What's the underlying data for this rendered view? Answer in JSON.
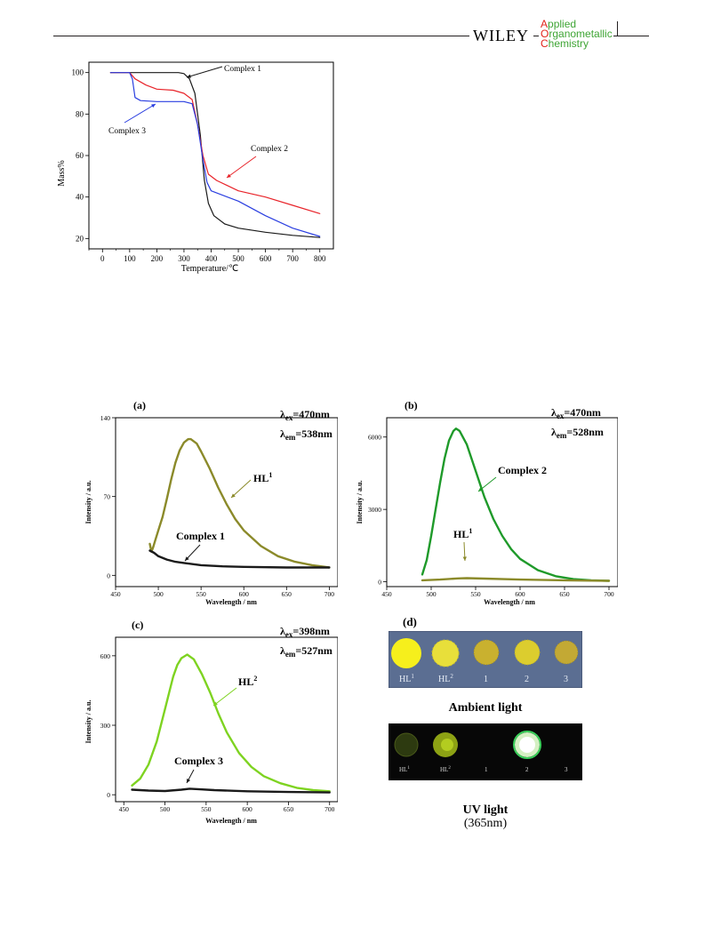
{
  "header": {
    "publisher": "WILEY",
    "journal_lines": [
      {
        "first": "A",
        "rest": "pplied"
      },
      {
        "first": "O",
        "rest": "rganometallic"
      },
      {
        "first": "C",
        "rest": "hemistry"
      }
    ]
  },
  "colors": {
    "black": "#1a1a1a",
    "red": "#e8242a",
    "blue": "#2a3ee0",
    "olive": "#8b8a2a",
    "darkgreen": "#1f9a2a",
    "lightgreen": "#7ed321"
  },
  "chart_data": [
    {
      "id": "tga",
      "type": "line",
      "title": "",
      "xlabel": "Temperature/℃",
      "ylabel": "Mass%",
      "xlim": [
        -50,
        850
      ],
      "ylim": [
        15,
        105
      ],
      "xticks": [
        0,
        100,
        200,
        300,
        400,
        500,
        600,
        700,
        800
      ],
      "yticks": [
        20,
        40,
        60,
        80,
        100
      ],
      "series": [
        {
          "name": "Complex 1",
          "color": "black",
          "x": [
            30,
            100,
            200,
            280,
            300,
            320,
            340,
            360,
            375,
            390,
            410,
            450,
            500,
            600,
            700,
            800
          ],
          "y": [
            100,
            100,
            100,
            100,
            99.5,
            97,
            90,
            70,
            48,
            37,
            31,
            27,
            25,
            23,
            21.5,
            20.5
          ]
        },
        {
          "name": "Complex 2",
          "color": "red",
          "x": [
            30,
            100,
            120,
            160,
            200,
            260,
            300,
            330,
            350,
            370,
            390,
            420,
            500,
            600,
            700,
            800
          ],
          "y": [
            100,
            100,
            97,
            94,
            92,
            91.5,
            90,
            87,
            75,
            60,
            51,
            48,
            43,
            40,
            36,
            32
          ]
        },
        {
          "name": "Complex 3",
          "color": "blue",
          "x": [
            30,
            100,
            110,
            120,
            140,
            200,
            260,
            300,
            330,
            350,
            370,
            385,
            400,
            500,
            600,
            700,
            800
          ],
          "y": [
            100,
            100,
            97,
            88,
            86.5,
            86,
            86,
            86,
            85,
            75,
            58,
            47,
            43,
            38,
            31,
            25,
            21
          ]
        }
      ],
      "annotations": [
        "Complex 1",
        "Complex 2",
        "Complex 3"
      ]
    },
    {
      "id": "a",
      "type": "line",
      "panel_label": "(a)",
      "xlabel": "Wavelength / nm",
      "ylabel": "Intensity / a.u.",
      "xlim": [
        450,
        710
      ],
      "ylim": [
        -10,
        140
      ],
      "xticks": [
        450,
        500,
        550,
        600,
        650,
        700
      ],
      "yticks": [
        0,
        70,
        140
      ],
      "excitation": {
        "ex_sym": "λ",
        "ex_sub": "ex",
        "ex_val": "=470nm",
        "em_sym": "λ",
        "em_sub": "em",
        "em_val": "=538nm"
      },
      "series": [
        {
          "name": "HL1",
          "label": "HL",
          "label_sup": "1",
          "color": "olive",
          "x": [
            490,
            492,
            494,
            496,
            500,
            505,
            510,
            515,
            520,
            525,
            530,
            535,
            538,
            545,
            550,
            560,
            570,
            580,
            590,
            600,
            620,
            640,
            660,
            680,
            700
          ],
          "y": [
            28,
            21,
            25,
            30,
            40,
            52,
            68,
            85,
            100,
            111,
            118,
            121,
            121,
            117,
            110,
            95,
            78,
            63,
            50,
            40,
            26,
            17,
            12,
            9,
            7
          ]
        },
        {
          "name": "Complex 1",
          "label": "Complex 1",
          "label_sup": "",
          "color": "black",
          "x": [
            490,
            495,
            500,
            510,
            520,
            530,
            550,
            575,
            600,
            650,
            700
          ],
          "y": [
            22,
            20,
            17,
            14,
            12,
            11,
            9,
            8,
            7.5,
            7,
            7
          ]
        }
      ]
    },
    {
      "id": "b",
      "type": "line",
      "panel_label": "(b)",
      "xlabel": "Wavelength / nm",
      "ylabel": "Intensity / a.u.",
      "xlim": [
        450,
        710
      ],
      "ylim": [
        -200,
        6800
      ],
      "xticks": [
        450,
        500,
        550,
        600,
        650,
        700
      ],
      "yticks": [
        0,
        3000,
        6000
      ],
      "excitation": {
        "ex_sym": "λ",
        "ex_sub": "ex",
        "ex_val": "=470nm",
        "em_sym": "λ",
        "em_sub": "em",
        "em_val": "=528nm"
      },
      "series": [
        {
          "name": "Complex 2",
          "label": "Complex 2",
          "label_sup": "",
          "color": "darkgreen",
          "x": [
            490,
            495,
            500,
            505,
            510,
            515,
            520,
            525,
            528,
            532,
            540,
            550,
            560,
            570,
            580,
            590,
            600,
            620,
            640,
            660,
            680,
            700
          ],
          "y": [
            300,
            900,
            1900,
            3000,
            4100,
            5100,
            5850,
            6250,
            6350,
            6250,
            5700,
            4600,
            3500,
            2600,
            1900,
            1350,
            950,
            480,
            230,
            110,
            60,
            40
          ]
        },
        {
          "name": "HL1",
          "label": "HL",
          "label_sup": "1",
          "color": "olive",
          "x": [
            490,
            510,
            530,
            540,
            560,
            600,
            650,
            700
          ],
          "y": [
            60,
            90,
            140,
            150,
            130,
            90,
            60,
            40
          ]
        }
      ]
    },
    {
      "id": "c",
      "type": "line",
      "panel_label": "(c)",
      "xlabel": "Wavelength / nm",
      "ylabel": "Intensity / a.u.",
      "xlim": [
        440,
        710
      ],
      "ylim": [
        -30,
        680
      ],
      "xticks": [
        450,
        500,
        550,
        600,
        650,
        700
      ],
      "yticks": [
        0,
        300,
        600
      ],
      "excitation": {
        "ex_sym": "λ",
        "ex_sub": "ex",
        "ex_val": "=398nm",
        "em_sym": "λ",
        "em_sub": "em",
        "em_val": "=527nm"
      },
      "series": [
        {
          "name": "HL2",
          "label": "HL",
          "label_sup": "2",
          "color": "lightgreen",
          "x": [
            460,
            470,
            480,
            490,
            500,
            505,
            510,
            515,
            520,
            527,
            535,
            545,
            555,
            565,
            575,
            590,
            605,
            620,
            640,
            660,
            680,
            700
          ],
          "y": [
            40,
            70,
            130,
            230,
            370,
            440,
            510,
            560,
            590,
            605,
            585,
            520,
            440,
            350,
            270,
            180,
            120,
            80,
            50,
            30,
            20,
            15
          ]
        },
        {
          "name": "Complex 3",
          "label": "Complex 3",
          "label_sup": "",
          "color": "black",
          "x": [
            460,
            480,
            500,
            520,
            530,
            540,
            560,
            600,
            650,
            700
          ],
          "y": [
            22,
            18,
            16,
            22,
            26,
            24,
            20,
            15,
            12,
            10
          ]
        }
      ]
    }
  ],
  "panel_d": {
    "label": "(d)",
    "ambient_labels": [
      {
        "base": "HL",
        "sup": "1"
      },
      {
        "base": "HL",
        "sup": "2"
      },
      {
        "base": "1",
        "sup": ""
      },
      {
        "base": "2",
        "sup": ""
      },
      {
        "base": "3",
        "sup": ""
      }
    ],
    "ambient_title": "Ambient light",
    "uv_labels": [
      {
        "base": "HL",
        "sup": "1"
      },
      {
        "base": "HL",
        "sup": "2"
      },
      {
        "base": "1",
        "sup": ""
      },
      {
        "base": "2",
        "sup": ""
      },
      {
        "base": "3",
        "sup": ""
      }
    ],
    "uv_title": "UV light",
    "uv_subtitle": "(365nm)"
  }
}
